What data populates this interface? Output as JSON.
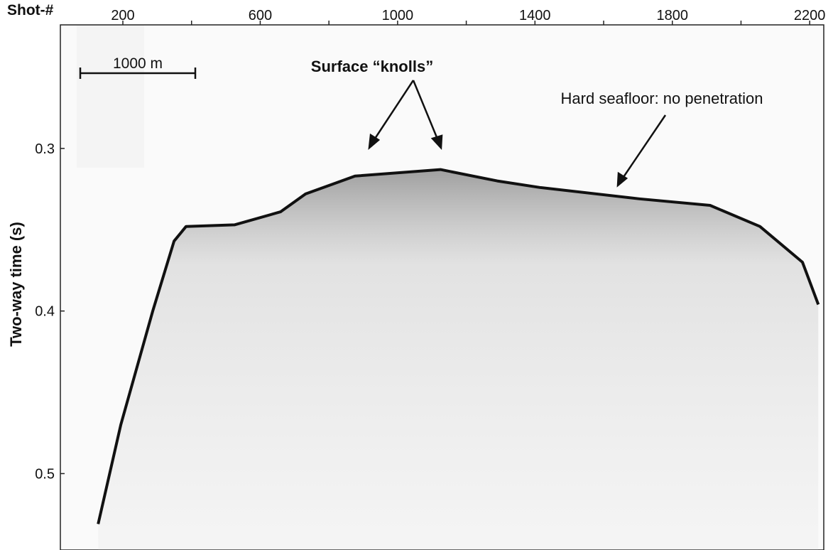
{
  "chart_data": {
    "type": "line",
    "x_label": "Shot-#",
    "y_label": "Two-way time (s)",
    "x": [
      128,
      194,
      287,
      349,
      384,
      525,
      659,
      732,
      876,
      1125,
      1290,
      1414,
      1704,
      1910,
      2055,
      2179,
      2225
    ],
    "values": [
      0.531,
      0.47,
      0.4,
      0.357,
      0.348,
      0.347,
      0.339,
      0.328,
      0.317,
      0.313,
      0.32,
      0.324,
      0.331,
      0.335,
      0.348,
      0.37,
      0.396
    ],
    "color": "#111111",
    "xlim": [
      18,
      2241
    ],
    "xticks": [
      200,
      600,
      1000,
      1400,
      1800,
      2200
    ],
    "x_minor_ticks": [
      400,
      800,
      1200,
      1600,
      2000
    ],
    "ylim": [
      0.224,
      0.547
    ],
    "yticks": [
      0.3,
      0.4,
      0.5
    ],
    "y_inverted": true,
    "scale_bar_label": "1000 m",
    "annotations": [
      "Surface “knolls”",
      "Hard seafloor: no penetration"
    ]
  }
}
